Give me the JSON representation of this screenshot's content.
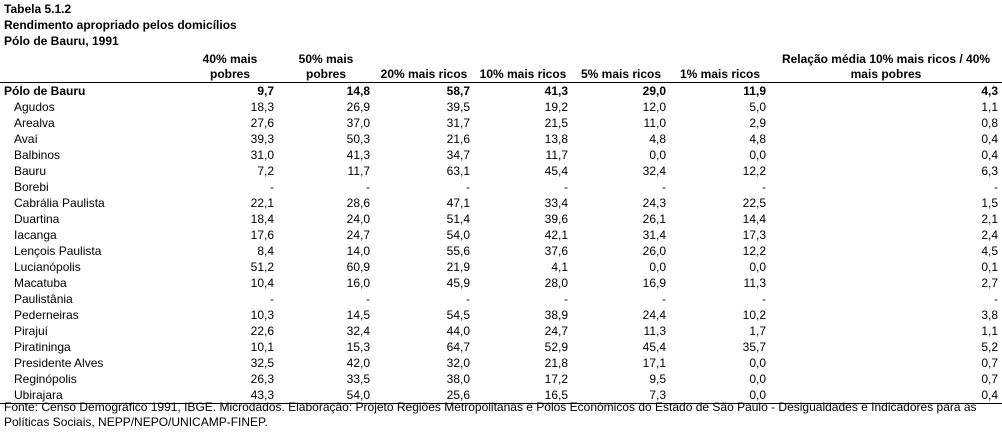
{
  "title": "Tabela 5.1.2",
  "subtitle": "Rendimento apropriado pelos domicílios",
  "region": "Pólo de Bauru, 1991",
  "headers": [
    "",
    "40% mais pobres",
    "50% mais pobres",
    "20% mais ricos",
    "10% mais ricos",
    "5% mais ricos",
    "1% mais ricos",
    "Relação média 10% mais ricos / 40% mais pobres"
  ],
  "rows": [
    [
      "Pólo de Bauru",
      "9,7",
      "14,8",
      "58,7",
      "41,3",
      "29,0",
      "11,9",
      "4,3"
    ],
    [
      "Agudos",
      "18,3",
      "26,9",
      "39,5",
      "19,2",
      "12,0",
      "5,0",
      "1,1"
    ],
    [
      "Arealva",
      "27,6",
      "37,0",
      "31,7",
      "21,5",
      "11,0",
      "2,9",
      "0,8"
    ],
    [
      "Avaí",
      "39,3",
      "50,3",
      "21,6",
      "13,8",
      "4,8",
      "4,8",
      "0,4"
    ],
    [
      "Balbinos",
      "31,0",
      "41,3",
      "34,7",
      "11,7",
      "0,0",
      "0,0",
      "0,4"
    ],
    [
      "Bauru",
      "7,2",
      "11,7",
      "63,1",
      "45,4",
      "32,4",
      "12,2",
      "6,3"
    ],
    [
      "Borebi",
      "-",
      "-",
      "-",
      "-",
      "-",
      "-",
      "-"
    ],
    [
      "Cabrália Paulista",
      "22,1",
      "28,6",
      "47,1",
      "33,4",
      "24,3",
      "22,5",
      "1,5"
    ],
    [
      "Duartina",
      "18,4",
      "24,0",
      "51,4",
      "39,6",
      "26,1",
      "14,4",
      "2,1"
    ],
    [
      "Iacanga",
      "17,6",
      "24,7",
      "54,0",
      "42,1",
      "31,4",
      "17,3",
      "2,4"
    ],
    [
      "Lençois Paulista",
      "8,4",
      "14,0",
      "55,6",
      "37,6",
      "26,0",
      "12,2",
      "4,5"
    ],
    [
      "Lucianópolis",
      "51,2",
      "60,9",
      "21,9",
      "4,1",
      "0,0",
      "0,0",
      "0,1"
    ],
    [
      "Macatuba",
      "10,4",
      "16,0",
      "45,9",
      "28,0",
      "16,9",
      "11,3",
      "2,7"
    ],
    [
      "Paulistânia",
      "-",
      "-",
      "-",
      "-",
      "-",
      "-",
      "-"
    ],
    [
      "Pederneiras",
      "10,3",
      "14,5",
      "54,5",
      "38,9",
      "24,4",
      "10,2",
      "3,8"
    ],
    [
      "Pirajuí",
      "22,6",
      "32,4",
      "44,0",
      "24,7",
      "11,3",
      "1,7",
      "1,1"
    ],
    [
      "Piratininga",
      "10,1",
      "15,3",
      "64,7",
      "52,9",
      "45,4",
      "35,7",
      "5,2"
    ],
    [
      "Presidente Alves",
      "32,5",
      "42,0",
      "32,0",
      "21,8",
      "17,1",
      "0,0",
      "0,7"
    ],
    [
      "Reginópolis",
      "26,3",
      "33,5",
      "38,0",
      "17,2",
      "9,5",
      "0,0",
      "0,7"
    ],
    [
      "Ubirajara",
      "43,3",
      "54,0",
      "25,6",
      "16,5",
      "7,3",
      "0,0",
      "0,4"
    ]
  ],
  "source": "Fonte: Censo Demográfico 1991, IBGE. Microdados. Elaboração: Projeto Regiões Metropolitanas e Pólos Econômicos do Estado de São Paulo - Desigualdades e Indicadores para as Políticas Sociais, NEPP/NEPO/UNICAMP-FINEP."
}
